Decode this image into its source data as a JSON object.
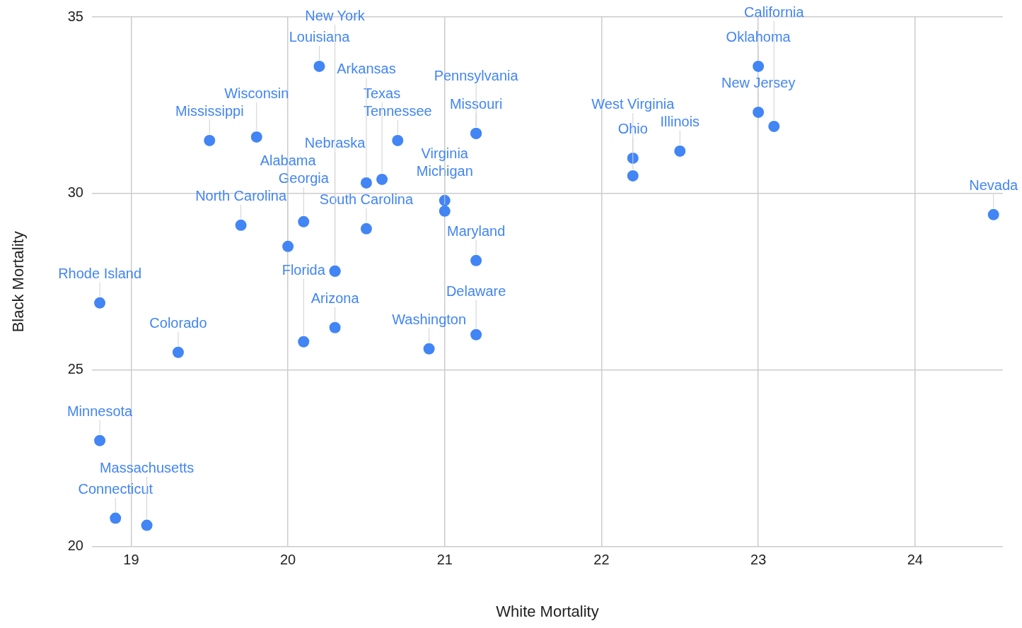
{
  "chart_data": {
    "type": "scatter",
    "xlabel": "White Mortality",
    "ylabel": "Black Mortality",
    "xlim": [
      18.75,
      24.56
    ],
    "xticks": [
      19,
      20,
      21,
      22,
      23,
      24
    ],
    "ylim": [
      20,
      35
    ],
    "yticks": [
      20,
      25,
      30,
      35
    ],
    "grid": true,
    "marker": "circle",
    "legend": false,
    "series": [
      {
        "color": "#4285f4",
        "x": [
          20.2,
          23,
          23,
          23.1,
          21.2,
          21.2,
          20.7,
          19.5,
          19.8,
          20.6,
          20.5,
          22.2,
          22.2,
          22.5,
          21,
          21,
          24.5,
          19.7,
          20.1,
          20.0,
          20.5,
          20.3,
          20.3,
          21.2,
          18.8,
          19.3,
          20.3,
          20.1,
          20.9,
          21.2,
          18.8,
          18.9,
          19.1
        ],
        "values": [
          33.6,
          33.6,
          32.3,
          31.9,
          31.7,
          31.7,
          31.5,
          31.5,
          31.6,
          30.4,
          30.3,
          31.0,
          30.5,
          31.2,
          29.8,
          29.5,
          29.4,
          29.1,
          29.2,
          28.5,
          29.0,
          27.8,
          27.8,
          28.1,
          26.9,
          25.5,
          26.2,
          25.8,
          25.6,
          26.0,
          23.0,
          20.8,
          20.6
        ],
        "value_labels": [
          "Louisiana",
          "Oklahoma",
          "New Jersey",
          "California",
          "Missouri",
          "Pennsylvania",
          "Tennessee",
          "Mississippi",
          "Wisconsin",
          "Texas",
          "Arkansas",
          "Ohio",
          "West Virginia",
          "Illinois",
          "Michigan",
          "Virginia",
          "Nevada",
          "North Carolina",
          "Georgia",
          "Alabama",
          "South Carolina",
          "Nebraska",
          "New York",
          "Maryland",
          "Rhode Island",
          "Colorado",
          "Arizona",
          "Florida",
          "Washington",
          "Delaware",
          "Minnesota",
          "Connecticut",
          "Massachusetts"
        ]
      }
    ]
  }
}
